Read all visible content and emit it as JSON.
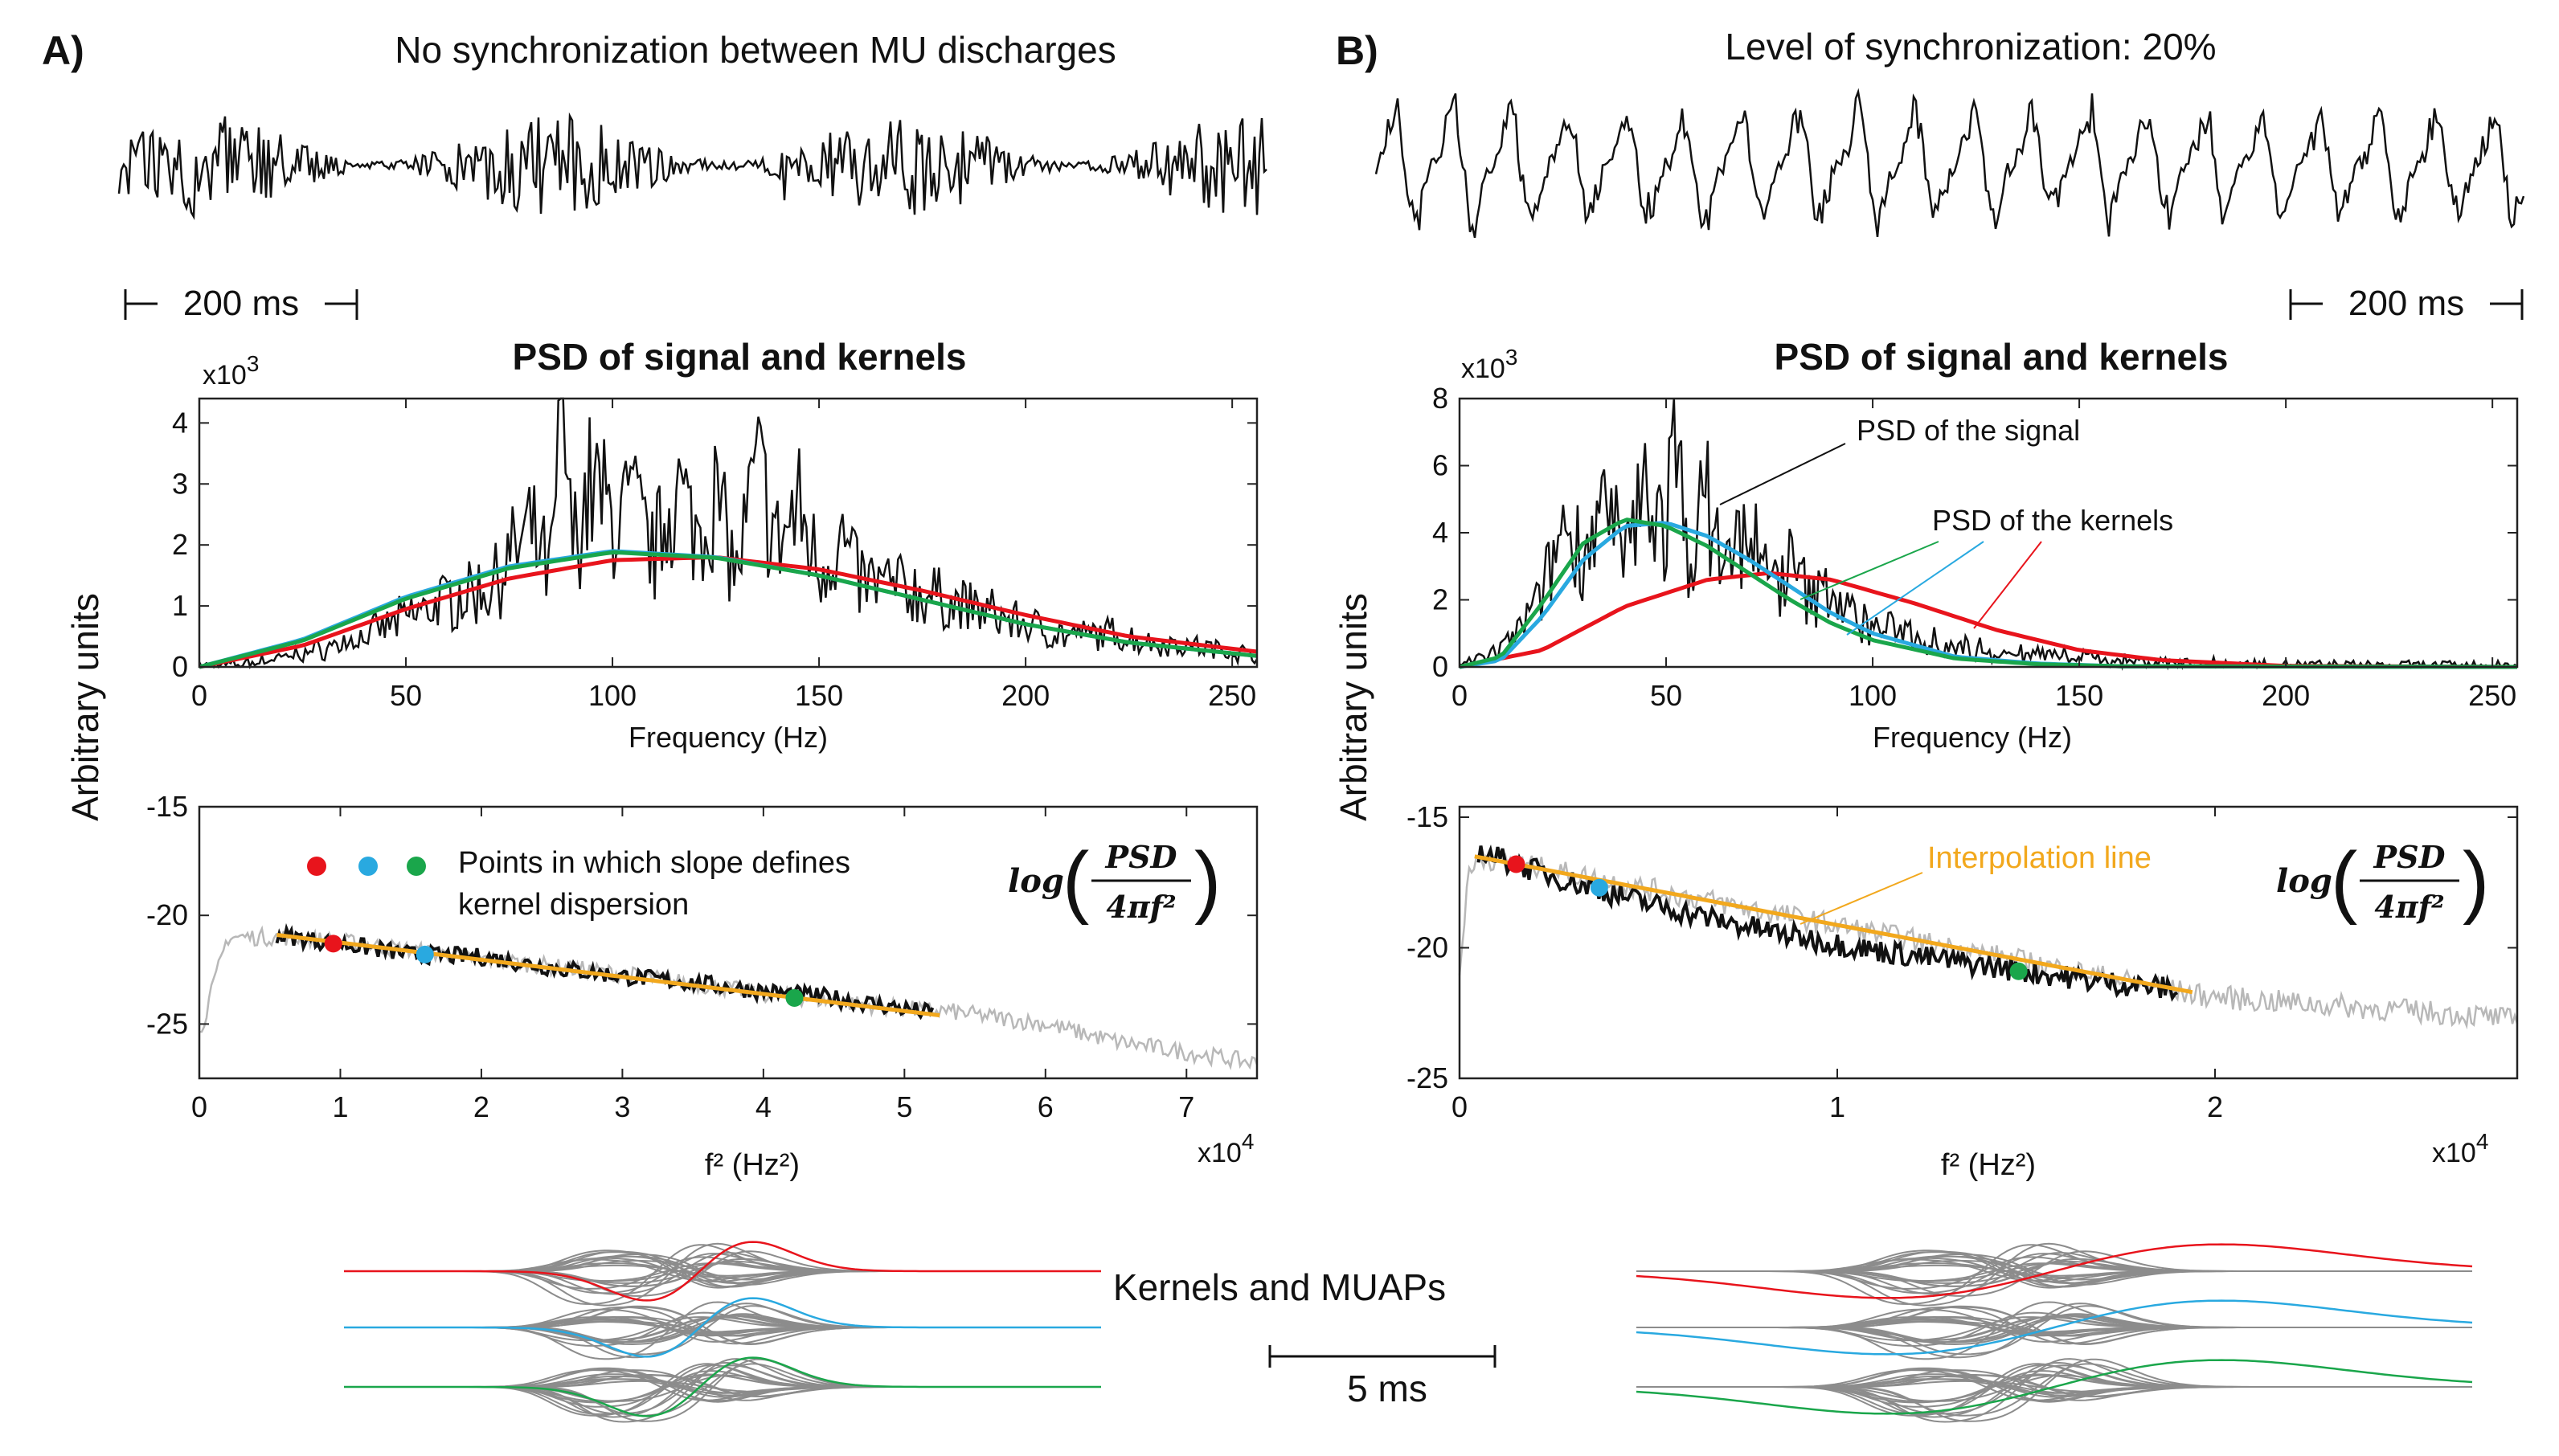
{
  "colors": {
    "red": "#e8141c",
    "cyan": "#29a9e0",
    "green": "#1aa64b",
    "orange": "#f2a81d",
    "gray": "#8c8c8c",
    "lightgray": "#b8b8b8",
    "black": "#111111"
  },
  "shared": {
    "ylabel": "Arbitrary units",
    "mid_title": "Kernels and MUAPs",
    "mid_scalebar": "5 ms"
  },
  "panels": [
    {
      "label": "A)",
      "trace_title": "No synchronization between MU discharges",
      "scalebar": "200 ms",
      "psd_title": "PSD of signal and kernels",
      "psd_exponent": "x10",
      "psd_exponent_power": "3",
      "loglog_exponent": "x10",
      "loglog_exponent_power": "4",
      "legend_text_1": "Points in which slope defines",
      "legend_text_2": "kernel dispersion",
      "formula_log": "log",
      "formula_num": "PSD",
      "formula_den": "4πf²"
    },
    {
      "label": "B)",
      "trace_title": "Level of synchronization: 20%",
      "scalebar": "200 ms",
      "psd_title": "PSD of signal and kernels",
      "psd_exponent": "x10",
      "psd_exponent_power": "3",
      "loglog_exponent": "x10",
      "loglog_exponent_power": "4",
      "annot_signal": "PSD of the signal",
      "annot_kernels": "PSD of the kernels",
      "annot_interp": "Interpolation line",
      "formula_log": "log",
      "formula_num": "PSD",
      "formula_den": "4πf²"
    }
  ],
  "chart_data": [
    {
      "id": "A-psd",
      "type": "line",
      "title": "PSD of signal and kernels",
      "xlabel": "Frequency (Hz)",
      "ylabel": "Arbitrary units",
      "xlim": [
        0,
        256
      ],
      "ylim": [
        0,
        4.4
      ],
      "y_multiplier": "x10^3",
      "xticks": [
        0,
        50,
        100,
        150,
        200,
        250
      ],
      "yticks": [
        0,
        1,
        2,
        3,
        4
      ],
      "series": [
        {
          "name": "PSD of the signal",
          "color": "black",
          "x": [
            0,
            10,
            20,
            30,
            40,
            50,
            60,
            70,
            80,
            85,
            88,
            90,
            95,
            100,
            105,
            110,
            115,
            120,
            125,
            130,
            135,
            140,
            145,
            150,
            155,
            160,
            170,
            180,
            190,
            200,
            210,
            220,
            230,
            240,
            250,
            256
          ],
          "y": [
            0.02,
            0.05,
            0.15,
            0.3,
            0.5,
            0.8,
            1.1,
            1.3,
            2.2,
            1.5,
            4.3,
            2.0,
            3.0,
            2.4,
            2.6,
            1.8,
            3.0,
            2.2,
            2.8,
            1.5,
            3.2,
            2.0,
            2.6,
            1.6,
            2.1,
            1.4,
            1.3,
            1.1,
            0.9,
            0.7,
            0.5,
            0.55,
            0.4,
            0.35,
            0.25,
            0.2
          ]
        },
        {
          "name": "Kernel 1",
          "color": "red",
          "x": [
            0,
            25,
            50,
            75,
            100,
            125,
            150,
            175,
            200,
            225,
            256
          ],
          "y": [
            0,
            0.35,
            0.95,
            1.45,
            1.75,
            1.8,
            1.6,
            1.25,
            0.85,
            0.5,
            0.25
          ]
        },
        {
          "name": "Kernel 2",
          "color": "cyan",
          "x": [
            0,
            25,
            50,
            75,
            100,
            125,
            150,
            175,
            200,
            225,
            256
          ],
          "y": [
            0,
            0.45,
            1.15,
            1.65,
            1.9,
            1.8,
            1.5,
            1.1,
            0.7,
            0.4,
            0.18
          ]
        },
        {
          "name": "Kernel 3",
          "color": "green",
          "x": [
            0,
            25,
            50,
            75,
            100,
            125,
            150,
            175,
            200,
            225,
            256
          ],
          "y": [
            0,
            0.43,
            1.12,
            1.62,
            1.88,
            1.79,
            1.5,
            1.1,
            0.7,
            0.4,
            0.18
          ]
        }
      ]
    },
    {
      "id": "A-log",
      "type": "line",
      "xlabel": "f² (Hz²)",
      "xlim": [
        0,
        7.5
      ],
      "ylim": [
        -27.5,
        -15
      ],
      "x_multiplier": "x10^4",
      "xticks": [
        0,
        1,
        2,
        3,
        4,
        5,
        6,
        7
      ],
      "yticks": [
        -25,
        -20,
        -15
      ],
      "series": [
        {
          "name": "log(PSD/4πf²) full",
          "color": "lightgray",
          "x": [
            0,
            0.2,
            0.6,
            1,
            2,
            3,
            4,
            5,
            5.3,
            6,
            6.5,
            7,
            7.5
          ],
          "y": [
            -25.5,
            -21,
            -21,
            -21.2,
            -22,
            -22.7,
            -23.6,
            -24.3,
            -24.4,
            -25,
            -25.8,
            -26.3,
            -26.8
          ]
        },
        {
          "name": "log(PSD/4πf²) fitted range",
          "color": "black",
          "x": [
            0.55,
            1,
            1.5,
            2,
            2.5,
            3,
            3.5,
            4,
            4.5,
            5,
            5.2
          ],
          "y": [
            -20.9,
            -21.3,
            -21.8,
            -21.9,
            -22.4,
            -22.8,
            -23.1,
            -23.5,
            -23.8,
            -24.3,
            -24.5
          ]
        },
        {
          "name": "Interpolation line",
          "color": "orange",
          "x": [
            0.55,
            5.25
          ],
          "y": [
            -20.9,
            -24.6
          ]
        }
      ],
      "points": [
        {
          "name": "red point",
          "color": "red",
          "x": 0.95,
          "y": -21.3
        },
        {
          "name": "cyan point",
          "color": "cyan",
          "x": 1.6,
          "y": -21.8
        },
        {
          "name": "green point",
          "color": "green",
          "x": 4.22,
          "y": -23.8
        }
      ]
    },
    {
      "id": "B-psd",
      "type": "line",
      "title": "PSD of signal and kernels",
      "xlabel": "Frequency (Hz)",
      "ylabel": "Arbitrary units",
      "xlim": [
        0,
        256
      ],
      "ylim": [
        0,
        8
      ],
      "y_multiplier": "x10^3",
      "xticks": [
        0,
        50,
        100,
        150,
        200,
        250
      ],
      "yticks": [
        0,
        2,
        4,
        6,
        8
      ],
      "series": [
        {
          "name": "PSD of the signal",
          "color": "black",
          "x": [
            0,
            10,
            20,
            25,
            30,
            35,
            40,
            45,
            50,
            52,
            55,
            60,
            65,
            70,
            75,
            80,
            85,
            90,
            95,
            100,
            110,
            120,
            130,
            140,
            150,
            160,
            180,
            200,
            220,
            256
          ],
          "y": [
            0.05,
            0.5,
            2.0,
            4.2,
            3.5,
            4.6,
            3.0,
            5.5,
            4.1,
            6.4,
            3.5,
            4.8,
            3.0,
            4.2,
            2.4,
            3.0,
            2.0,
            2.4,
            1.5,
            1.2,
            1.0,
            0.6,
            0.45,
            0.35,
            0.3,
            0.2,
            0.1,
            0.05,
            0.03,
            0.02
          ]
        },
        {
          "name": "Kernel 1",
          "color": "red",
          "x": [
            0,
            20,
            40,
            60,
            75,
            90,
            110,
            130,
            150,
            170,
            200,
            256
          ],
          "y": [
            0,
            0.5,
            1.8,
            2.6,
            2.8,
            2.6,
            1.9,
            1.1,
            0.5,
            0.2,
            0.03,
            0
          ]
        },
        {
          "name": "Kernel 2",
          "color": "cyan",
          "x": [
            0,
            10,
            20,
            30,
            40,
            50,
            60,
            70,
            80,
            90,
            100,
            120,
            140,
            160,
            256
          ],
          "y": [
            0,
            0.2,
            1.5,
            3.2,
            4.2,
            4.3,
            3.9,
            3.2,
            2.4,
            1.6,
            1.0,
            0.3,
            0.1,
            0.02,
            0
          ]
        },
        {
          "name": "Kernel 3",
          "color": "green",
          "x": [
            0,
            10,
            20,
            30,
            40,
            50,
            60,
            70,
            80,
            90,
            100,
            120,
            140,
            160,
            256
          ],
          "y": [
            0,
            0.3,
            1.9,
            3.7,
            4.4,
            4.2,
            3.6,
            2.8,
            2.0,
            1.3,
            0.8,
            0.25,
            0.08,
            0.02,
            0
          ]
        }
      ]
    },
    {
      "id": "B-log",
      "type": "line",
      "xlabel": "f² (Hz²)",
      "xlim": [
        0,
        2.8
      ],
      "ylim": [
        -25,
        -14.6
      ],
      "x_multiplier": "x10^4",
      "xticks": [
        0,
        1,
        2
      ],
      "yticks": [
        -25,
        -20,
        -15
      ],
      "series": [
        {
          "name": "log(PSD/4πf²) full",
          "color": "lightgray",
          "x": [
            0,
            0.02,
            0.05,
            1.95,
            2.1,
            2.3,
            2.5,
            2.7,
            2.8
          ],
          "y": [
            -21,
            -17.5,
            -16.5,
            -21.8,
            -22.0,
            -22.2,
            -22.4,
            -22.6,
            -22.8
          ]
        },
        {
          "name": "log(PSD/4πf²) fitted range",
          "color": "black",
          "x": [
            0.05,
            0.15,
            0.3,
            0.5,
            0.7,
            0.9,
            1.1,
            1.3,
            1.5,
            1.7,
            1.9
          ],
          "y": [
            -16.3,
            -16.8,
            -17.5,
            -18.3,
            -19,
            -19.6,
            -20.1,
            -20.5,
            -20.9,
            -21.3,
            -21.6
          ]
        },
        {
          "name": "Interpolation line",
          "color": "orange",
          "x": [
            0.04,
            1.94
          ],
          "y": [
            -16.5,
            -21.7
          ]
        }
      ],
      "points": [
        {
          "name": "red point",
          "color": "red",
          "x": 0.15,
          "y": -16.8
        },
        {
          "name": "cyan point",
          "color": "cyan",
          "x": 0.37,
          "y": -17.7
        },
        {
          "name": "green point",
          "color": "green",
          "x": 1.48,
          "y": -20.9
        }
      ]
    }
  ]
}
